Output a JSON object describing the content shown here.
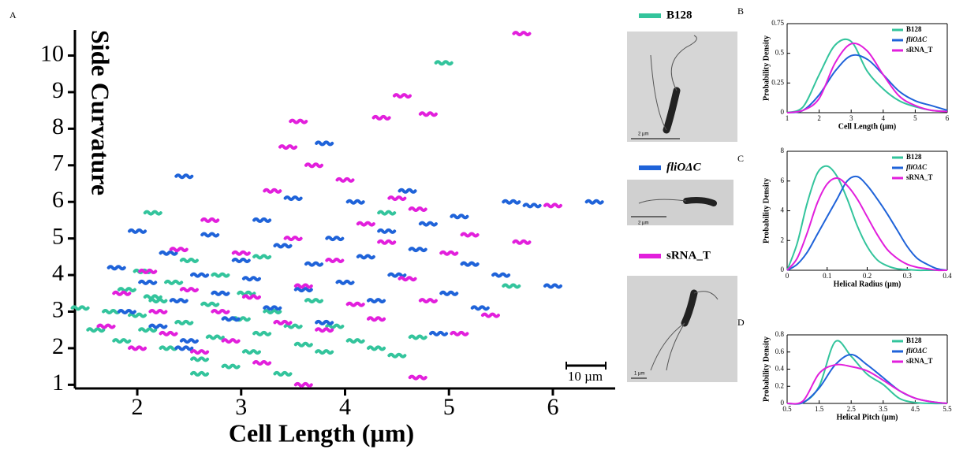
{
  "chart_data": [
    {
      "type": "scatter",
      "panel": "A",
      "x_label": "Cell Length (µm)",
      "y_label": "Side Curvature",
      "xlim": [
        1.4,
        6.6
      ],
      "ylim": [
        0.9,
        10.7
      ],
      "xticks": [
        2,
        3,
        4,
        5,
        6
      ],
      "yticks": [
        1,
        2,
        3,
        4,
        5,
        6,
        7,
        8,
        9,
        10
      ],
      "annotation": "10 µm",
      "series": [
        {
          "name": "B128",
          "color": "#33c49c",
          "x": [
            1.45,
            1.6,
            1.75,
            1.85,
            1.9,
            2.0,
            2.05,
            2.1,
            2.15,
            2.2,
            2.3,
            2.35,
            2.45,
            2.5,
            2.6,
            2.7,
            2.75,
            2.8,
            2.9,
            3.0,
            3.05,
            3.1,
            3.2,
            3.3,
            3.4,
            3.5,
            3.6,
            3.7,
            3.8,
            3.9,
            4.1,
            4.3,
            4.5,
            4.7,
            2.15,
            4.95,
            5.6,
            4.4,
            2.6,
            3.2
          ],
          "values": [
            3.1,
            2.5,
            3.0,
            2.2,
            3.6,
            2.9,
            4.1,
            2.5,
            5.7,
            3.3,
            2.0,
            3.8,
            2.7,
            4.4,
            1.7,
            3.2,
            2.3,
            4.0,
            1.5,
            2.8,
            3.5,
            1.9,
            2.4,
            3.0,
            1.3,
            2.6,
            2.1,
            3.3,
            1.9,
            2.6,
            2.2,
            2.0,
            1.8,
            2.3,
            3.4,
            9.8,
            3.7,
            5.7,
            1.3,
            4.5
          ]
        },
        {
          "name": "fliOΔC",
          "color": "#1f63d9",
          "x": [
            1.8,
            1.9,
            2.0,
            2.1,
            2.2,
            2.3,
            2.4,
            2.45,
            2.5,
            2.6,
            2.7,
            2.8,
            2.9,
            3.0,
            3.1,
            3.2,
            3.3,
            3.4,
            3.5,
            3.6,
            3.7,
            3.8,
            3.9,
            4.0,
            4.1,
            4.2,
            4.3,
            4.4,
            4.5,
            4.6,
            4.7,
            4.8,
            5.0,
            5.1,
            5.2,
            5.3,
            5.5,
            5.6,
            5.8,
            6.0,
            6.4,
            3.8,
            2.45,
            5.2,
            4.9
          ],
          "values": [
            4.2,
            3.0,
            5.2,
            3.8,
            2.6,
            4.6,
            3.3,
            6.7,
            2.2,
            4.0,
            5.1,
            3.5,
            2.8,
            4.4,
            3.9,
            5.5,
            3.1,
            4.8,
            6.1,
            3.6,
            4.3,
            2.7,
            5.0,
            3.8,
            6.0,
            4.5,
            3.3,
            5.2,
            4.0,
            6.3,
            4.7,
            5.4,
            3.5,
            5.6,
            4.3,
            3.1,
            4.0,
            6.0,
            5.9,
            3.7,
            6.0,
            7.6,
            2.0,
            4.3,
            2.4
          ]
        },
        {
          "name": "sRNA_T",
          "color": "#e21fdc",
          "x": [
            1.7,
            1.85,
            2.0,
            2.1,
            2.2,
            2.3,
            2.4,
            2.5,
            2.6,
            2.7,
            2.8,
            2.9,
            3.0,
            3.1,
            3.2,
            3.3,
            3.4,
            3.5,
            3.6,
            3.7,
            3.8,
            3.9,
            4.0,
            4.1,
            4.2,
            4.3,
            4.4,
            4.5,
            4.6,
            4.7,
            4.8,
            5.0,
            5.2,
            5.4,
            5.7,
            6.0,
            3.45,
            3.55,
            4.35,
            4.55,
            4.8,
            5.7,
            4.7,
            3.6,
            5.1
          ],
          "values": [
            2.6,
            3.5,
            2.0,
            4.1,
            3.0,
            2.4,
            4.7,
            3.6,
            1.9,
            5.5,
            3.0,
            2.2,
            4.6,
            3.4,
            1.6,
            6.3,
            2.7,
            5.0,
            3.7,
            7.0,
            2.5,
            4.4,
            6.6,
            3.2,
            5.4,
            2.8,
            4.9,
            6.1,
            3.9,
            5.8,
            3.3,
            4.6,
            5.1,
            2.9,
            4.9,
            5.9,
            7.5,
            8.2,
            8.3,
            8.9,
            8.4,
            10.6,
            1.2,
            1.0,
            2.4
          ]
        }
      ]
    },
    {
      "type": "line",
      "panel": "B",
      "x_label": "Cell Length (µm)",
      "y_label": "Probability Density",
      "xlim": [
        1,
        6
      ],
      "ylim": [
        0,
        0.75
      ],
      "xticks": [
        1,
        2,
        3,
        4,
        5,
        6
      ],
      "yticks": [
        0,
        0.25,
        0.5,
        0.75
      ],
      "x": [
        1,
        1.5,
        2,
        2.5,
        3,
        3.5,
        4,
        4.5,
        5,
        5.5,
        6
      ],
      "series": [
        {
          "name": "B128",
          "color": "#33c49c",
          "values": [
            0,
            0.05,
            0.32,
            0.57,
            0.6,
            0.35,
            0.2,
            0.1,
            0.05,
            0.02,
            0.01
          ]
        },
        {
          "name": "fliOΔC",
          "color": "#1f63d9",
          "values": [
            0,
            0.02,
            0.15,
            0.35,
            0.48,
            0.45,
            0.32,
            0.18,
            0.1,
            0.06,
            0.02
          ]
        },
        {
          "name": "sRNA_T",
          "color": "#e21fdc",
          "values": [
            0,
            0.02,
            0.12,
            0.42,
            0.58,
            0.52,
            0.32,
            0.14,
            0.06,
            0.02,
            0.01
          ]
        }
      ]
    },
    {
      "type": "line",
      "panel": "C",
      "x_label": "Helical Radius (µm)",
      "y_label": "Probability Density",
      "xlim": [
        0,
        0.4
      ],
      "ylim": [
        0,
        8
      ],
      "xticks": [
        0,
        0.1,
        0.2,
        0.3,
        0.4
      ],
      "yticks": [
        0,
        2,
        4,
        6,
        8
      ],
      "x": [
        0,
        0.025,
        0.05,
        0.075,
        0.1,
        0.125,
        0.15,
        0.175,
        0.2,
        0.225,
        0.25,
        0.275,
        0.3,
        0.325,
        0.35,
        0.375,
        0.4
      ],
      "series": [
        {
          "name": "B128",
          "color": "#33c49c",
          "values": [
            0,
            1.8,
            4.5,
            6.5,
            7.0,
            6.3,
            4.8,
            3.0,
            1.6,
            0.7,
            0.3,
            0.1,
            0.05,
            0,
            0,
            0,
            0
          ]
        },
        {
          "name": "fliOΔC",
          "color": "#1f63d9",
          "values": [
            0,
            0.4,
            1.2,
            2.4,
            3.6,
            4.8,
            6.0,
            6.3,
            5.7,
            4.8,
            3.8,
            2.7,
            1.6,
            0.8,
            0.4,
            0.1,
            0
          ]
        },
        {
          "name": "sRNA_T",
          "color": "#e21fdc",
          "values": [
            0,
            0.8,
            2.5,
            4.5,
            5.8,
            6.2,
            5.7,
            4.8,
            3.6,
            2.4,
            1.4,
            0.8,
            0.4,
            0.2,
            0.1,
            0,
            0
          ]
        }
      ]
    },
    {
      "type": "line",
      "panel": "D",
      "x_label": "Helical Pitch (µm)",
      "y_label": "Probability Density",
      "xlim": [
        0.5,
        5.5
      ],
      "ylim": [
        0,
        0.8
      ],
      "xticks": [
        0.5,
        1.5,
        2.5,
        3.5,
        4.5,
        5.5
      ],
      "yticks": [
        0,
        0.2,
        0.4,
        0.6,
        0.8
      ],
      "x": [
        0.5,
        1,
        1.5,
        2,
        2.5,
        3,
        3.5,
        4,
        4.5,
        5,
        5.5
      ],
      "series": [
        {
          "name": "B128",
          "color": "#33c49c",
          "values": [
            0,
            0.01,
            0.2,
            0.72,
            0.55,
            0.34,
            0.22,
            0.06,
            0.01,
            0,
            0
          ]
        },
        {
          "name": "fliOΔC",
          "color": "#1f63d9",
          "values": [
            0,
            0.01,
            0.18,
            0.45,
            0.57,
            0.45,
            0.3,
            0.15,
            0.06,
            0.02,
            0
          ]
        },
        {
          "name": "sRNA_T",
          "color": "#e21fdc",
          "values": [
            0,
            0.03,
            0.35,
            0.45,
            0.43,
            0.38,
            0.27,
            0.15,
            0.06,
            0.02,
            0
          ]
        }
      ]
    }
  ],
  "micrographs": [
    {
      "label": "B128",
      "color": "#33c49c",
      "scale_bar": "2 µm"
    },
    {
      "label": "fliOΔC",
      "color": "#1f63d9",
      "scale_bar": "2 µm"
    },
    {
      "label": "sRNA_T",
      "color": "#e21fdc",
      "scale_bar": "1 µm"
    }
  ]
}
